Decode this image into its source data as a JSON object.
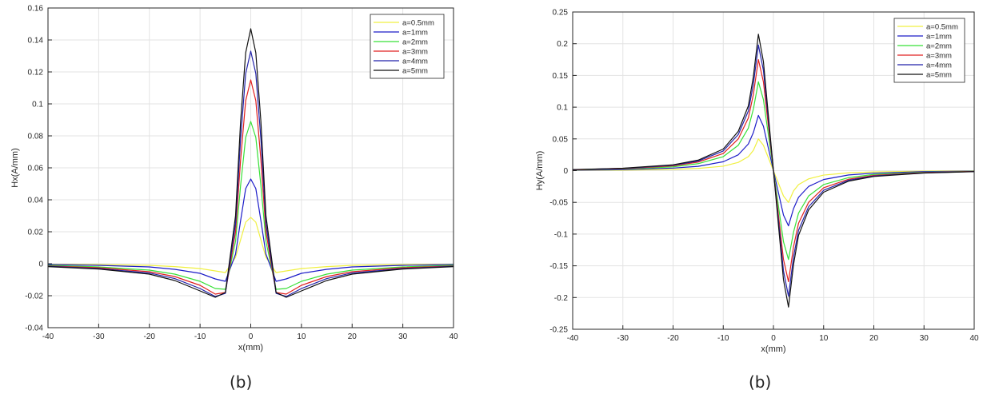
{
  "panels": [
    {
      "caption": "(b)"
    },
    {
      "caption": "(b)"
    }
  ],
  "chart_data": [
    {
      "type": "line",
      "title": "",
      "xlabel": "x(mm)",
      "ylabel": "Hx(A/mm)",
      "xlim": [
        -40,
        40
      ],
      "ylim": [
        -0.04,
        0.16
      ],
      "xticks": [
        -40,
        -30,
        -20,
        -10,
        0,
        10,
        20,
        30,
        40
      ],
      "xtick_labels": [
        "-40",
        "-30",
        "-20",
        "-10",
        "0",
        "10",
        "20",
        "30",
        "40"
      ],
      "yticks": [
        -0.04,
        -0.02,
        0,
        0.02,
        0.04,
        0.06,
        0.08,
        0.1,
        0.12,
        0.14,
        0.16
      ],
      "ytick_labels": [
        "-0.04",
        "-0.02",
        "0",
        "0.02",
        "0.04",
        "0.06",
        "0.08",
        "0.1",
        "0.12",
        "0.14",
        "0.16"
      ],
      "grid": true,
      "legend": "top-right",
      "series": [
        {
          "name": "a=0.5mm",
          "color": "#f0f040",
          "x": [
            -40,
            -30,
            -20,
            -15,
            -10,
            -7,
            -5,
            -3,
            -2,
            -1,
            0,
            1,
            2,
            3,
            5,
            7,
            10,
            15,
            20,
            30,
            40
          ],
          "y": [
            -0.0003,
            -0.0005,
            -0.001,
            -0.0018,
            -0.003,
            -0.0045,
            -0.0055,
            0.004,
            0.015,
            0.026,
            0.029,
            0.026,
            0.015,
            0.004,
            -0.0055,
            -0.0045,
            -0.003,
            -0.0018,
            -0.001,
            -0.0005,
            -0.0003
          ]
        },
        {
          "name": "a=1mm",
          "color": "#1c1cc8",
          "x": [
            -40,
            -30,
            -20,
            -15,
            -10,
            -7,
            -5,
            -3,
            -2,
            -1,
            0,
            1,
            2,
            3,
            5,
            7,
            10,
            15,
            20,
            30,
            40
          ],
          "y": [
            -0.0005,
            -0.001,
            -0.002,
            -0.0035,
            -0.006,
            -0.0095,
            -0.011,
            0.006,
            0.027,
            0.047,
            0.053,
            0.047,
            0.027,
            0.006,
            -0.011,
            -0.0095,
            -0.006,
            -0.0035,
            -0.002,
            -0.001,
            -0.0005
          ]
        },
        {
          "name": "a=2mm",
          "color": "#38e038",
          "x": [
            -40,
            -30,
            -20,
            -15,
            -10,
            -7,
            -5,
            -3,
            -2,
            -1,
            0,
            1,
            2,
            3,
            5,
            7,
            10,
            15,
            20,
            30,
            40
          ],
          "y": [
            -0.001,
            -0.002,
            -0.004,
            -0.0065,
            -0.011,
            -0.0155,
            -0.016,
            0.014,
            0.049,
            0.079,
            0.089,
            0.079,
            0.049,
            0.014,
            -0.016,
            -0.0155,
            -0.011,
            -0.0065,
            -0.004,
            -0.002,
            -0.001
          ]
        },
        {
          "name": "a=3mm",
          "color": "#e02020",
          "x": [
            -40,
            -30,
            -20,
            -15,
            -10,
            -7,
            -5,
            -3,
            -2,
            -1,
            0,
            1,
            2,
            3,
            5,
            7,
            10,
            15,
            20,
            30,
            40
          ],
          "y": [
            -0.0014,
            -0.0025,
            -0.005,
            -0.008,
            -0.0135,
            -0.019,
            -0.018,
            0.02,
            0.065,
            0.102,
            0.115,
            0.102,
            0.065,
            0.02,
            -0.018,
            -0.019,
            -0.0135,
            -0.008,
            -0.005,
            -0.0025,
            -0.0014
          ]
        },
        {
          "name": "a=4mm",
          "color": "#2222aa",
          "x": [
            -40,
            -30,
            -20,
            -15,
            -10,
            -7,
            -5,
            -3,
            -2,
            -1,
            0,
            1,
            2,
            3,
            5,
            7,
            10,
            15,
            20,
            30,
            40
          ],
          "y": [
            -0.0016,
            -0.003,
            -0.0058,
            -0.0093,
            -0.0155,
            -0.0205,
            -0.0185,
            0.025,
            0.078,
            0.119,
            0.133,
            0.119,
            0.078,
            0.025,
            -0.0185,
            -0.0205,
            -0.0155,
            -0.0093,
            -0.0058,
            -0.003,
            -0.0016
          ]
        },
        {
          "name": "a=5mm",
          "color": "#111111",
          "x": [
            -40,
            -30,
            -20,
            -15,
            -10,
            -7,
            -5,
            -3,
            -2,
            -1,
            0,
            1,
            2,
            3,
            5,
            7,
            10,
            15,
            20,
            30,
            40
          ],
          "y": [
            -0.0018,
            -0.0033,
            -0.0065,
            -0.0105,
            -0.017,
            -0.021,
            -0.018,
            0.03,
            0.089,
            0.132,
            0.147,
            0.132,
            0.089,
            0.03,
            -0.018,
            -0.021,
            -0.017,
            -0.0105,
            -0.0065,
            -0.0033,
            -0.0018
          ]
        }
      ]
    },
    {
      "type": "line",
      "title": "",
      "xlabel": "x(mm)",
      "ylabel": "Hy(A/mm)",
      "xlim": [
        -40,
        40
      ],
      "ylim": [
        -0.25,
        0.25
      ],
      "xticks": [
        -40,
        -30,
        -20,
        -10,
        0,
        10,
        20,
        30,
        40
      ],
      "xtick_labels": [
        "-40",
        "-30",
        "-20",
        "-10",
        "0",
        "10",
        "20",
        "30",
        "40"
      ],
      "yticks": [
        -0.25,
        -0.2,
        -0.15,
        -0.1,
        -0.05,
        0,
        0.05,
        0.1,
        0.15,
        0.2,
        0.25
      ],
      "ytick_labels": [
        "-0.25",
        "-0.2",
        "-0.15",
        "-0.1",
        "-0.05",
        "0",
        "0.05",
        "0.1",
        "0.15",
        "0.2",
        "0.25"
      ],
      "grid": true,
      "legend": "top-right",
      "series": [
        {
          "name": "a=0.5mm",
          "color": "#f0f040",
          "x": [
            -40,
            -30,
            -20,
            -15,
            -10,
            -7,
            -5,
            -4,
            -3,
            -2,
            -1,
            0,
            1,
            2,
            3,
            4,
            5,
            7,
            10,
            15,
            20,
            30,
            40
          ],
          "y": [
            0.0004,
            0.0008,
            0.002,
            0.0035,
            0.007,
            0.013,
            0.022,
            0.032,
            0.05,
            0.04,
            0.02,
            0,
            -0.02,
            -0.04,
            -0.05,
            -0.032,
            -0.022,
            -0.013,
            -0.007,
            -0.0035,
            -0.002,
            -0.0008,
            -0.0004
          ]
        },
        {
          "name": "a=1mm",
          "color": "#1c1cc8",
          "x": [
            -40,
            -30,
            -20,
            -15,
            -10,
            -7,
            -5,
            -4,
            -3,
            -2,
            -1,
            0,
            1,
            2,
            3,
            4,
            5,
            7,
            10,
            15,
            20,
            30,
            40
          ],
          "y": [
            0.0007,
            0.0015,
            0.004,
            0.0068,
            0.014,
            0.025,
            0.042,
            0.06,
            0.087,
            0.07,
            0.035,
            0,
            -0.035,
            -0.07,
            -0.087,
            -0.06,
            -0.042,
            -0.025,
            -0.014,
            -0.0068,
            -0.004,
            -0.0015,
            -0.0007
          ]
        },
        {
          "name": "a=2mm",
          "color": "#38e038",
          "x": [
            -40,
            -30,
            -20,
            -15,
            -10,
            -7,
            -5,
            -4,
            -3,
            -2,
            -1,
            0,
            1,
            2,
            3,
            4,
            5,
            7,
            10,
            15,
            20,
            30,
            40
          ],
          "y": [
            0.001,
            0.0025,
            0.006,
            0.011,
            0.022,
            0.04,
            0.067,
            0.097,
            0.14,
            0.112,
            0.056,
            0,
            -0.056,
            -0.112,
            -0.14,
            -0.097,
            -0.067,
            -0.04,
            -0.022,
            -0.011,
            -0.006,
            -0.0025,
            -0.001
          ]
        },
        {
          "name": "a=3mm",
          "color": "#e02020",
          "x": [
            -40,
            -30,
            -20,
            -15,
            -10,
            -7,
            -5,
            -4,
            -3,
            -2,
            -1,
            0,
            1,
            2,
            3,
            4,
            5,
            7,
            10,
            15,
            20,
            30,
            40
          ],
          "y": [
            0.0013,
            0.003,
            0.0075,
            0.0135,
            0.027,
            0.05,
            0.083,
            0.12,
            0.175,
            0.14,
            0.07,
            0,
            -0.07,
            -0.14,
            -0.175,
            -0.12,
            -0.083,
            -0.05,
            -0.027,
            -0.0135,
            -0.0075,
            -0.003,
            -0.0013
          ]
        },
        {
          "name": "a=4mm",
          "color": "#2222aa",
          "x": [
            -40,
            -30,
            -20,
            -15,
            -10,
            -7,
            -5,
            -4,
            -3,
            -2,
            -1,
            0,
            1,
            2,
            3,
            4,
            5,
            7,
            10,
            15,
            20,
            30,
            40
          ],
          "y": [
            0.0015,
            0.0035,
            0.0085,
            0.015,
            0.031,
            0.057,
            0.094,
            0.136,
            0.198,
            0.158,
            0.079,
            0,
            -0.079,
            -0.158,
            -0.198,
            -0.136,
            -0.094,
            -0.057,
            -0.031,
            -0.015,
            -0.0085,
            -0.0035,
            -0.0015
          ]
        },
        {
          "name": "a=5mm",
          "color": "#111111",
          "x": [
            -40,
            -30,
            -20,
            -15,
            -10,
            -7,
            -5,
            -4,
            -3,
            -2,
            -1,
            0,
            1,
            2,
            3,
            4,
            5,
            7,
            10,
            15,
            20,
            30,
            40
          ],
          "y": [
            0.0016,
            0.0038,
            0.0092,
            0.0165,
            0.034,
            0.062,
            0.102,
            0.148,
            0.215,
            0.172,
            0.086,
            0,
            -0.086,
            -0.172,
            -0.215,
            -0.148,
            -0.102,
            -0.062,
            -0.034,
            -0.0165,
            -0.0092,
            -0.0038,
            -0.0016
          ]
        }
      ]
    }
  ]
}
